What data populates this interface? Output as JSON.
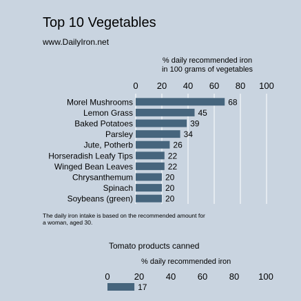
{
  "chart_data": [
    {
      "type": "bar",
      "orientation": "horizontal",
      "title": "Top 10 Vegetables",
      "subtitle": "www.DailyIron.net",
      "ylabel": "% daily recommended iron\nin 100 grams of vegetables",
      "categories": [
        "Morel Mushrooms",
        "Lemon Grass",
        "Baked Potatoes",
        "Parsley",
        "Jute, Potherb",
        "Horseradish Leafy Tips",
        "Winged Bean Leaves",
        "Chrysanthemum",
        "Spinach",
        "Soybeans (green)"
      ],
      "values": [
        68,
        45,
        39,
        34,
        26,
        22,
        22,
        20,
        20,
        20
      ],
      "ticks": [
        "0",
        "20",
        "40",
        "60",
        "80",
        "100"
      ],
      "xlim": [
        0,
        100
      ],
      "grid": true,
      "bar_color": "#46657d",
      "footnote": "The daily iron intake is based on the recommended amount for a woman, aged 30."
    },
    {
      "type": "bar",
      "orientation": "horizontal",
      "title": "Tomato products canned",
      "ylabel": "% daily recommended iron",
      "values": [
        17
      ],
      "ticks": [
        "0",
        "20",
        "40",
        "60",
        "80",
        "100"
      ],
      "xlim": [
        0,
        100
      ],
      "bar_color": "#46657d"
    }
  ]
}
